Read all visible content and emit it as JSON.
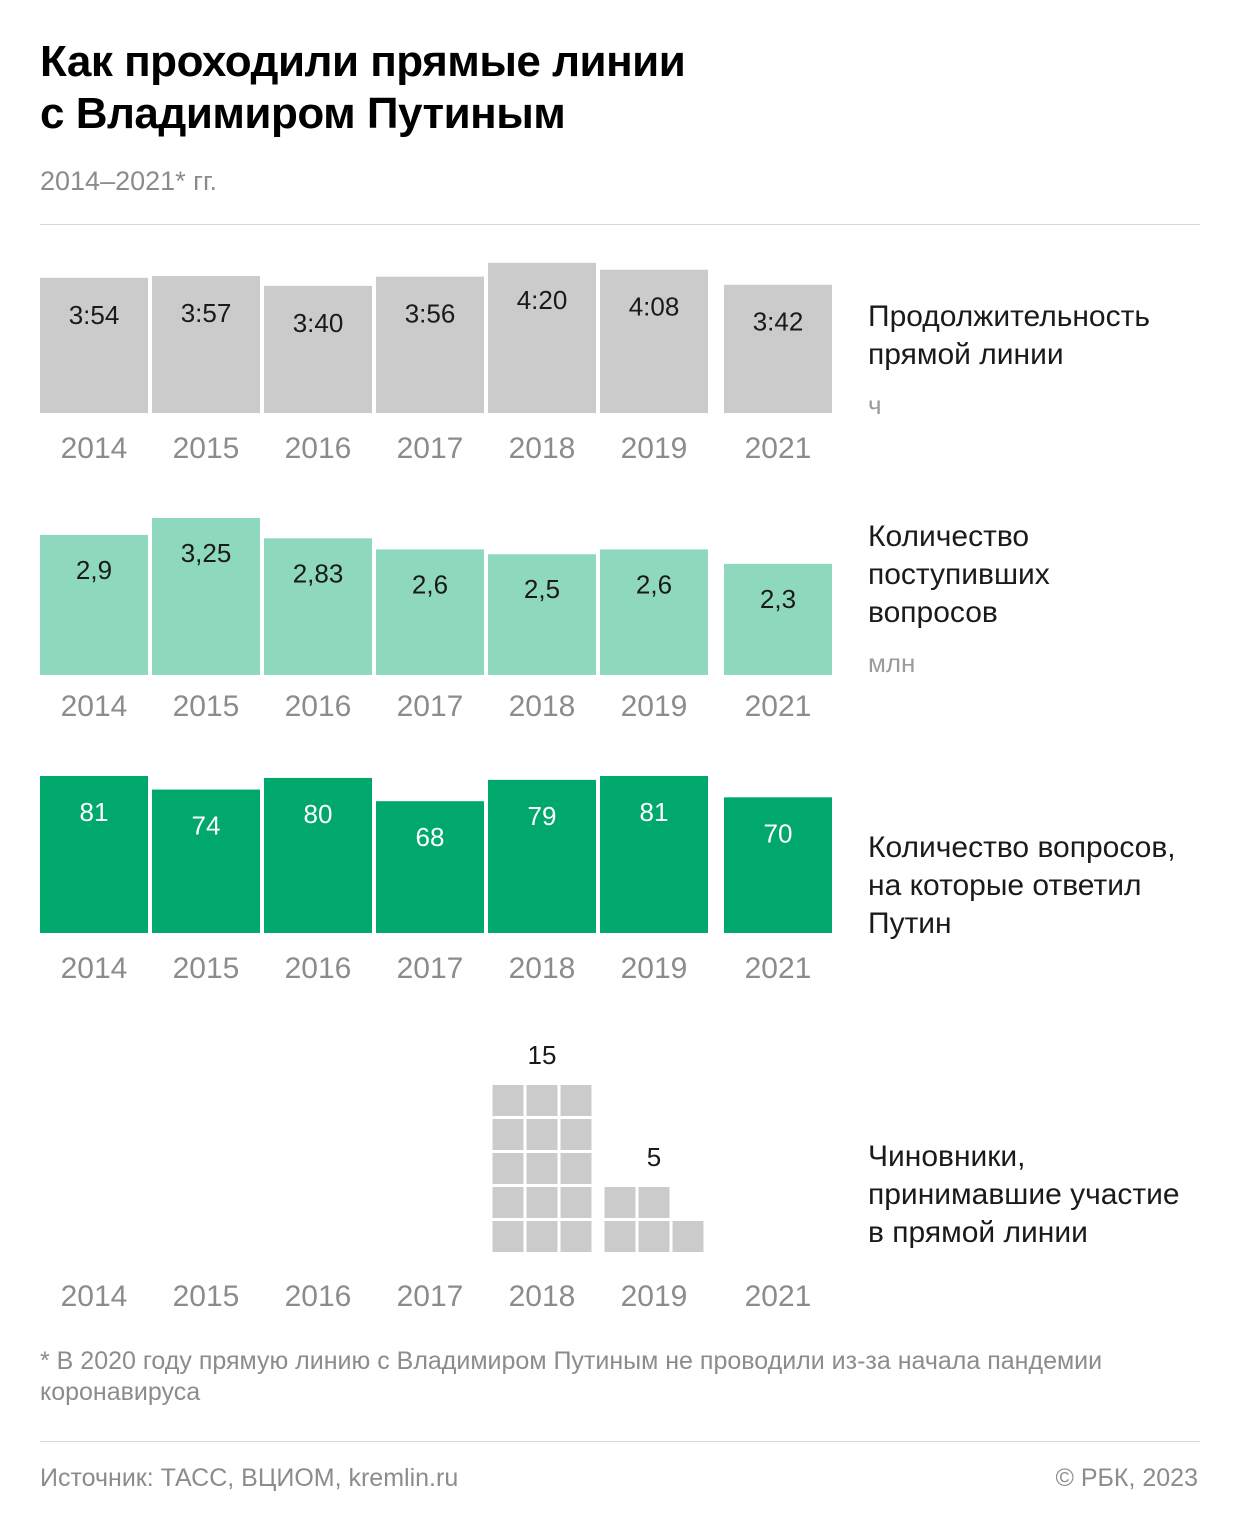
{
  "header": {
    "title_line1": "Как проходили прямые линии",
    "title_line2": "с Владимиром Путиным",
    "subtitle": "2014–2021* гг."
  },
  "colors": {
    "duration": "#cbcbcb",
    "received": "#8ed9bd",
    "answered": "#00a86b",
    "officials": "#cbcbcb",
    "axis_label": "#8c8c8c"
  },
  "chart_data": [
    {
      "type": "bar",
      "title_lines": [
        "Продолжительность",
        "прямой линии"
      ],
      "unit": "ч",
      "categories": [
        "2014",
        "2015",
        "2016",
        "2017",
        "2018",
        "2019",
        "2021"
      ],
      "values": [
        3.9,
        3.95,
        3.6667,
        3.9333,
        4.3333,
        4.1333,
        3.7
      ],
      "labels": [
        "3:54",
        "3:57",
        "3:40",
        "3:56",
        "4:20",
        "4:08",
        "3:42"
      ],
      "ylim": [
        0,
        4.5
      ]
    },
    {
      "type": "bar",
      "title_lines": [
        "Количество",
        "поступивших",
        "вопросов"
      ],
      "unit": "млн",
      "categories": [
        "2014",
        "2015",
        "2016",
        "2017",
        "2018",
        "2019",
        "2021"
      ],
      "values": [
        2.9,
        3.25,
        2.83,
        2.6,
        2.5,
        2.6,
        2.3
      ],
      "labels": [
        "2,9",
        "3,25",
        "2,83",
        "2,6",
        "2,5",
        "2,6",
        "2,3"
      ],
      "ylim": [
        0,
        3.25
      ]
    },
    {
      "type": "bar",
      "title_lines": [
        "Количество вопросов,",
        "на которые ответил",
        "Путин"
      ],
      "unit": "",
      "categories": [
        "2014",
        "2015",
        "2016",
        "2017",
        "2018",
        "2019",
        "2021"
      ],
      "values": [
        81,
        74,
        80,
        68,
        79,
        81,
        70
      ],
      "labels": [
        "81",
        "74",
        "80",
        "68",
        "79",
        "81",
        "70"
      ],
      "ylim": [
        0,
        81
      ]
    },
    {
      "type": "bar",
      "style": "unit-squares",
      "title_lines": [
        "Чиновники,",
        "принимавшие участие",
        "в прямой линии"
      ],
      "unit": "",
      "categories": [
        "2014",
        "2015",
        "2016",
        "2017",
        "2018",
        "2019",
        "2021"
      ],
      "values": [
        0,
        0,
        0,
        0,
        15,
        5,
        0
      ],
      "labels": [
        "",
        "",
        "",
        "",
        "15",
        "5",
        ""
      ]
    }
  ],
  "footnote": "* В 2020 году прямую линию с Владимиром Путиным не проводили из-за начала пандемии коронавируса",
  "footer": {
    "source": "Источник: ТАСС, ВЦИОМ, kremlin.ru",
    "copyright": "© РБК, 2023"
  }
}
